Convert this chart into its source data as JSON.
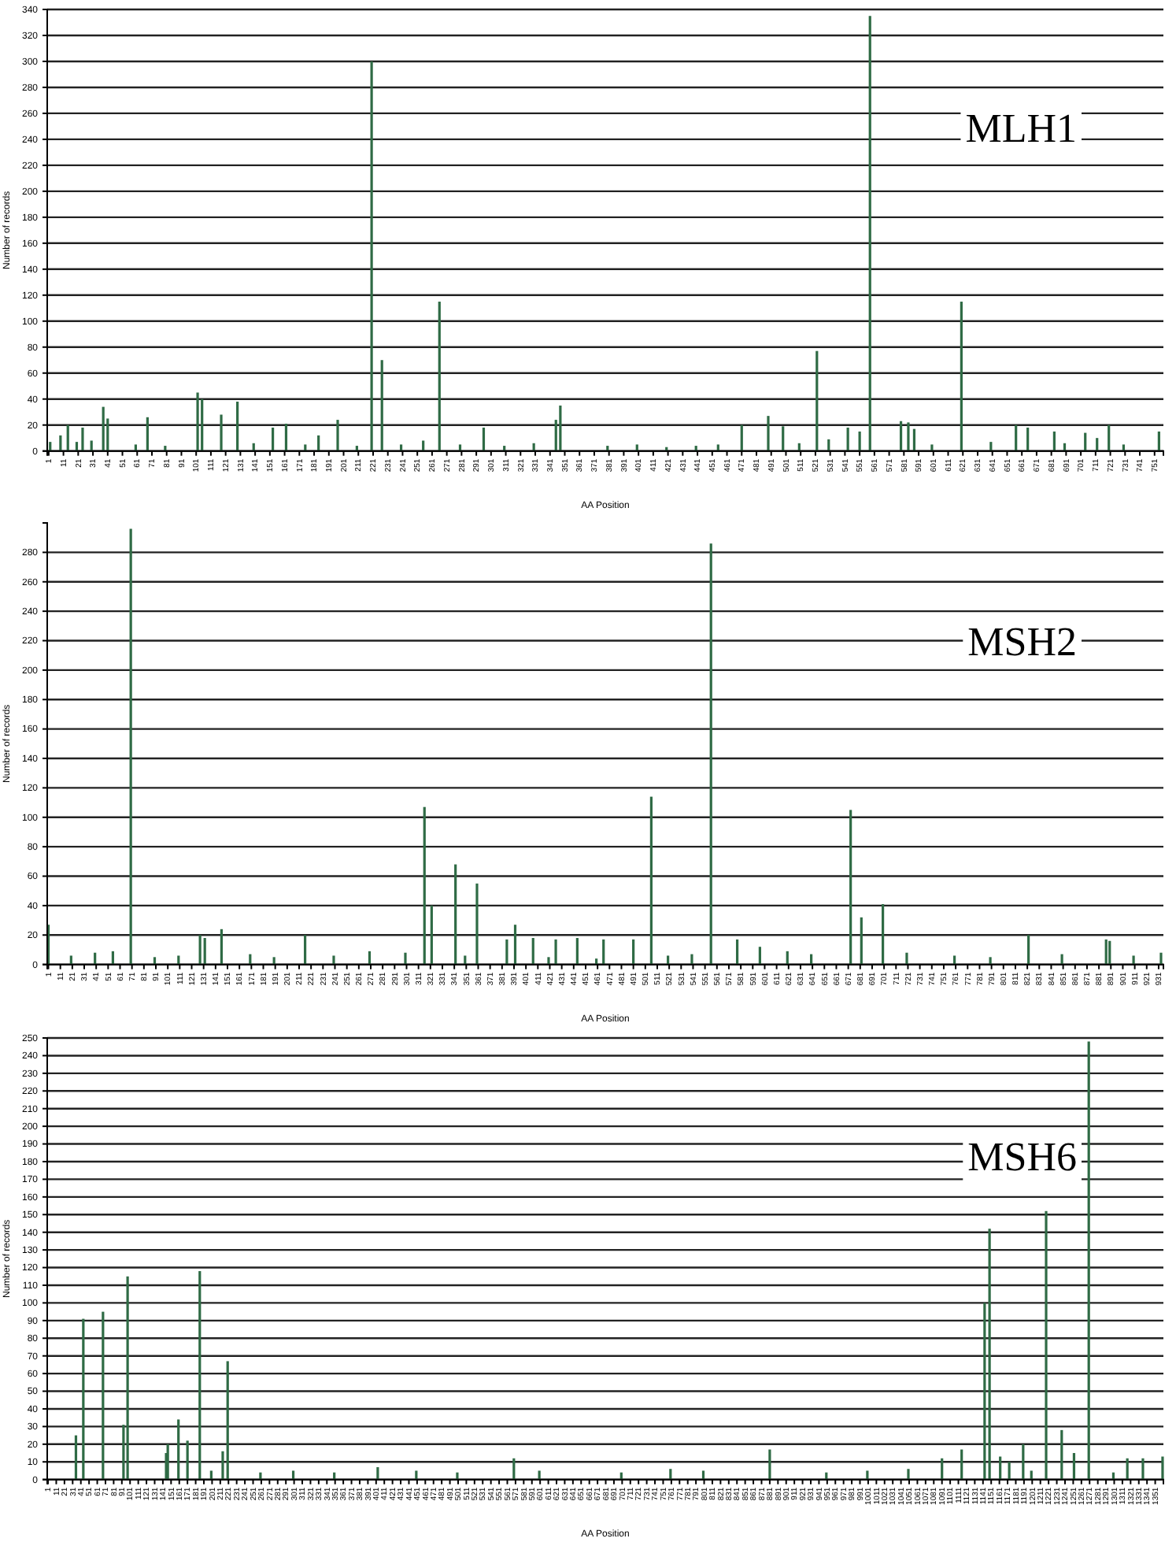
{
  "chart_data": [
    {
      "type": "bar",
      "title": "MLH1",
      "xlabel": "AA Position",
      "ylabel": "Number of records",
      "grid": "y",
      "xlim": [
        0,
        757
      ],
      "ylim": [
        0,
        340
      ],
      "yticks": [
        0,
        20,
        40,
        60,
        80,
        100,
        120,
        140,
        160,
        180,
        200,
        220,
        240,
        260,
        280,
        300,
        320,
        340
      ],
      "xticks": [
        1,
        11,
        21,
        31,
        41,
        51,
        61,
        71,
        81,
        91,
        101,
        111,
        121,
        131,
        141,
        151,
        161,
        171,
        181,
        191,
        201,
        211,
        221,
        231,
        241,
        251,
        261,
        271,
        281,
        291,
        301,
        311,
        321,
        331,
        341,
        351,
        361,
        371,
        381,
        391,
        401,
        411,
        421,
        431,
        441,
        451,
        461,
        471,
        481,
        491,
        501,
        511,
        521,
        531,
        541,
        551,
        561,
        571,
        581,
        591,
        601,
        611,
        621,
        631,
        641,
        651,
        661,
        671,
        681,
        691,
        701,
        711,
        721,
        731,
        741,
        751
      ],
      "series": [
        {
          "color": "#2f6b45",
          "x": [
            2,
            9,
            14,
            20,
            24,
            30,
            38,
            41,
            60,
            68,
            80,
            102,
            105,
            118,
            129,
            140,
            153,
            162,
            175,
            184,
            197,
            210,
            220,
            227,
            240,
            255,
            266,
            280,
            296,
            310,
            330,
            345,
            348,
            380,
            400,
            420,
            440,
            455,
            471,
            489,
            499,
            510,
            522,
            530,
            543,
            551,
            558,
            579,
            584,
            588,
            600,
            620,
            640,
            657,
            665,
            683,
            690,
            704,
            712,
            720,
            730,
            754
          ],
          "values": [
            7,
            12,
            20,
            7,
            18,
            8,
            34,
            25,
            5,
            26,
            4,
            45,
            40,
            28,
            38,
            6,
            18,
            21,
            5,
            12,
            24,
            4,
            300,
            70,
            5,
            8,
            115,
            5,
            18,
            4,
            6,
            24,
            35,
            4,
            5,
            3,
            4,
            5,
            20,
            27,
            19,
            6,
            77,
            9,
            18,
            15,
            335,
            23,
            22,
            17,
            5,
            115,
            7,
            20,
            18,
            15,
            6,
            14,
            10,
            20,
            5,
            15
          ]
        }
      ]
    },
    {
      "type": "bar",
      "title": "MSH2",
      "xlabel": "AA Position",
      "ylabel": "Number of records",
      "grid": "y",
      "xlim": [
        0,
        935
      ],
      "ylim": [
        0,
        300
      ],
      "yticks": [
        0,
        20,
        40,
        60,
        80,
        100,
        120,
        140,
        160,
        180,
        200,
        220,
        240,
        260,
        280
      ],
      "xticks": [
        1,
        11,
        21,
        31,
        41,
        51,
        61,
        71,
        81,
        91,
        101,
        111,
        121,
        131,
        141,
        151,
        161,
        171,
        181,
        191,
        201,
        211,
        221,
        231,
        241,
        251,
        261,
        271,
        281,
        291,
        301,
        311,
        321,
        331,
        341,
        351,
        361,
        371,
        381,
        391,
        401,
        411,
        421,
        431,
        441,
        451,
        461,
        471,
        481,
        491,
        501,
        511,
        521,
        531,
        541,
        551,
        561,
        571,
        581,
        591,
        601,
        611,
        621,
        631,
        641,
        651,
        661,
        671,
        681,
        691,
        701,
        711,
        721,
        731,
        741,
        751,
        761,
        771,
        781,
        791,
        801,
        811,
        821,
        831,
        841,
        851,
        861,
        871,
        881,
        891,
        901,
        911,
        921,
        931
      ],
      "series": [
        {
          "color": "#2f6b45",
          "x": [
            1,
            20,
            40,
            55,
            70,
            90,
            110,
            128,
            132,
            146,
            170,
            190,
            216,
            240,
            270,
            300,
            316,
            322,
            342,
            350,
            360,
            385,
            392,
            407,
            420,
            426,
            444,
            460,
            466,
            491,
            506,
            520,
            540,
            556,
            578,
            597,
            620,
            640,
            673,
            682,
            700,
            720,
            760,
            790,
            822,
            850,
            887,
            890,
            910,
            933
          ],
          "values": [
            27,
            6,
            8,
            9,
            296,
            5,
            6,
            20,
            18,
            24,
            7,
            5,
            20,
            6,
            9,
            8,
            107,
            40,
            68,
            6,
            55,
            17,
            27,
            18,
            5,
            17,
            18,
            4,
            17,
            17,
            114,
            6,
            7,
            286,
            17,
            12,
            9,
            7,
            105,
            32,
            41,
            8,
            6,
            5,
            20,
            7,
            17,
            16,
            6,
            8
          ]
        }
      ]
    },
    {
      "type": "bar",
      "title": "MSH6",
      "xlabel": "AA Position",
      "ylabel": "Number of records",
      "grid": "y",
      "xlim": [
        0,
        1361
      ],
      "ylim": [
        0,
        250
      ],
      "yticks": [
        0,
        10,
        20,
        30,
        40,
        50,
        60,
        70,
        80,
        90,
        100,
        110,
        120,
        130,
        140,
        150,
        160,
        170,
        180,
        190,
        200,
        210,
        220,
        230,
        240,
        250
      ],
      "xticks": [
        1,
        11,
        21,
        31,
        41,
        51,
        61,
        71,
        81,
        91,
        101,
        111,
        121,
        131,
        141,
        151,
        161,
        171,
        181,
        191,
        201,
        211,
        221,
        231,
        241,
        251,
        261,
        271,
        281,
        291,
        301,
        311,
        321,
        331,
        341,
        351,
        361,
        371,
        381,
        391,
        401,
        411,
        421,
        431,
        441,
        451,
        461,
        471,
        481,
        491,
        501,
        511,
        521,
        531,
        541,
        551,
        561,
        571,
        581,
        591,
        601,
        611,
        621,
        631,
        641,
        651,
        661,
        671,
        681,
        691,
        701,
        711,
        721,
        731,
        741,
        751,
        761,
        771,
        781,
        791,
        801,
        811,
        821,
        831,
        841,
        851,
        861,
        871,
        881,
        891,
        901,
        911,
        921,
        931,
        941,
        951,
        961,
        971,
        981,
        991,
        1001,
        1011,
        1021,
        1031,
        1041,
        1051,
        1061,
        1071,
        1081,
        1091,
        1101,
        1111,
        1121,
        1131,
        1141,
        1151,
        1161,
        1171,
        1181,
        1191,
        1201,
        1211,
        1221,
        1231,
        1241,
        1251,
        1261,
        1271,
        1281,
        1291,
        1301,
        1311,
        1321,
        1331,
        1341,
        1351
      ],
      "series": [
        {
          "color": "#2f6b45",
          "x": [
            35,
            44,
            68,
            93,
            98,
            145,
            147,
            160,
            171,
            186,
            200,
            214,
            220,
            260,
            300,
            350,
            403,
            450,
            500,
            569,
            600,
            700,
            760,
            800,
            881,
            950,
            1000,
            1050,
            1091,
            1115,
            1143,
            1149,
            1162,
            1173,
            1190,
            1200,
            1218,
            1237,
            1252,
            1270,
            1300,
            1317,
            1336,
            1360
          ],
          "values": [
            25,
            91,
            95,
            31,
            115,
            15,
            20,
            34,
            22,
            118,
            5,
            16,
            67,
            4,
            5,
            4,
            7,
            5,
            4,
            12,
            5,
            4,
            6,
            5,
            17,
            4,
            5,
            6,
            12,
            17,
            100,
            142,
            13,
            10,
            20,
            5,
            152,
            28,
            15,
            248,
            4,
            12,
            12,
            13
          ]
        }
      ]
    }
  ]
}
